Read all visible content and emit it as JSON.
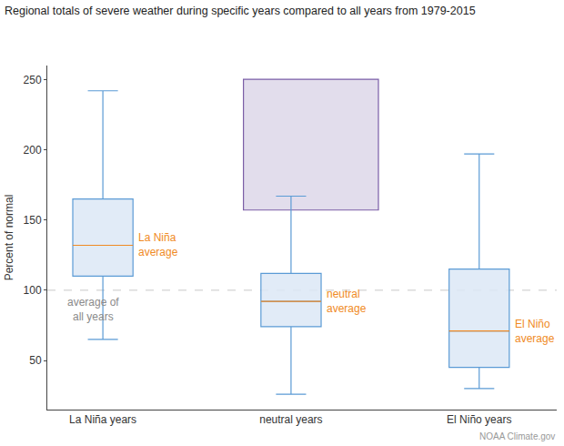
{
  "chart_data": {
    "type": "box",
    "title": "Regional totals of severe weather during specific years compared to all years from 1979-2015",
    "y_label": "Percent of normal",
    "credit": "NOAA Climate.gov",
    "categories": [
      "La Niña years",
      "neutral years",
      "El Niño years"
    ],
    "min": [
      65,
      26,
      30
    ],
    "q1": [
      110,
      74,
      45
    ],
    "median": [
      132,
      92,
      71
    ],
    "q3": [
      165,
      112,
      115
    ],
    "max": [
      242,
      167,
      197
    ],
    "median_labels": [
      [
        "La Niña",
        "average"
      ],
      [
        "neutral",
        "average"
      ],
      [
        "El Niño",
        "average"
      ]
    ],
    "reference_line": {
      "value": 100,
      "label": [
        "average of",
        "all years"
      ]
    },
    "color": "#5b9bd5",
    "ylim": [
      15,
      260
    ],
    "yticks": [
      50,
      100,
      150,
      200,
      250
    ],
    "grid": false
  }
}
